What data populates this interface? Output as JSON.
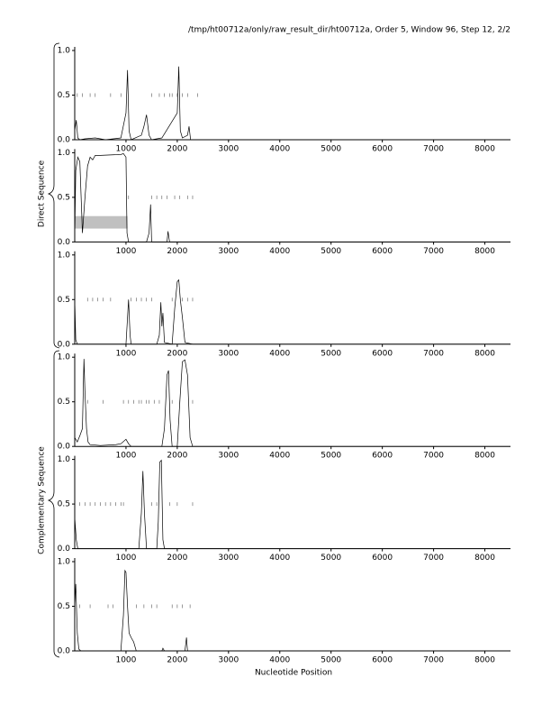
{
  "header": "/tmp/ht00712a/only/raw_result_dir/ht00712a, Order 5, Window 96, Step 12, 2/2",
  "group_labels": [
    "Direct Sequence",
    "Complementary Sequence"
  ],
  "xlabel": "Nucleotide Position",
  "chart_data": [
    {
      "type": "line",
      "color": "#000000",
      "xlim": [
        0,
        8500
      ],
      "ylim": [
        0,
        1
      ],
      "xticks": [
        1000,
        2000,
        3000,
        4000,
        5000,
        6000,
        7000,
        8000
      ],
      "yticks": [
        {
          "value": 0,
          "label": "0.0"
        },
        {
          "value": 0.5,
          "label": "0.5"
        },
        {
          "value": 1,
          "label": "1.0"
        }
      ],
      "x": [
        0,
        30,
        60,
        100,
        200,
        400,
        600,
        900,
        1000,
        1030,
        1060,
        1100,
        1300,
        1350,
        1400,
        1450,
        1500,
        1700,
        2000,
        2030,
        2060,
        2100,
        2200,
        2230,
        2260,
        2400,
        8500
      ],
      "values": [
        0.1,
        0.22,
        0.02,
        0,
        0.01,
        0.02,
        0,
        0.02,
        0.3,
        0.78,
        0.1,
        0,
        0.05,
        0.15,
        0.28,
        0.05,
        0,
        0.02,
        0.3,
        0.82,
        0.1,
        0.02,
        0.05,
        0.15,
        0,
        0,
        0
      ],
      "sites": {
        "x": [
          50,
          150,
          300,
          400,
          700,
          900,
          1500,
          1650,
          1750,
          1850,
          1900,
          2000,
          2100,
          2200,
          2400
        ],
        "y": [
          0.5,
          0.5,
          0.5,
          0.5,
          0.5,
          0.5,
          0.5,
          0.5,
          0.5,
          0.5,
          0.5,
          0.5,
          0.5,
          0.5,
          0.5
        ]
      }
    },
    {
      "type": "line",
      "color": "#000000",
      "xlim": [
        0,
        8500
      ],
      "ylim": [
        0,
        1
      ],
      "xticks": [
        1000,
        2000,
        3000,
        4000,
        5000,
        6000,
        7000,
        8000
      ],
      "yticks": [
        {
          "value": 0,
          "label": "0.0"
        },
        {
          "value": 0.5,
          "label": "0.5"
        },
        {
          "value": 1,
          "label": "1.0"
        }
      ],
      "x": [
        0,
        20,
        60,
        100,
        150,
        200,
        250,
        300,
        350,
        400,
        500,
        900,
        950,
        1000,
        1020,
        1050,
        1400,
        1450,
        1480,
        1500,
        1800,
        1820,
        1850,
        2000,
        8500
      ],
      "values": [
        0.05,
        0.8,
        0.95,
        0.9,
        0.1,
        0.5,
        0.85,
        0.95,
        0.92,
        0.97,
        0.97,
        0.98,
        0.99,
        0.95,
        0.1,
        0,
        0,
        0.1,
        0.42,
        0,
        0,
        0.12,
        0,
        0,
        0
      ],
      "highlight": {
        "x": [
          0,
          1030
        ],
        "y": [
          0.15,
          0.29
        ],
        "color": "#c0c0c0"
      },
      "sites": {
        "x": [
          1050,
          1500,
          1600,
          1700,
          1800,
          1950,
          2050,
          2200,
          2300
        ],
        "y": [
          0.5,
          0.5,
          0.5,
          0.5,
          0.5,
          0.5,
          0.5,
          0.5,
          0.5
        ]
      }
    },
    {
      "type": "line",
      "color": "#000000",
      "xlim": [
        0,
        8500
      ],
      "ylim": [
        0,
        1
      ],
      "xticks": [
        1000,
        2000,
        3000,
        4000,
        5000,
        6000,
        7000,
        8000
      ],
      "yticks": [
        {
          "value": 0,
          "label": "0.0"
        },
        {
          "value": 0.5,
          "label": "0.5"
        },
        {
          "value": 1,
          "label": "1.0"
        }
      ],
      "x": [
        0,
        20,
        50,
        100,
        1000,
        1020,
        1050,
        1080,
        1100,
        1600,
        1650,
        1680,
        1700,
        1720,
        1750,
        1900,
        1950,
        2000,
        2030,
        2060,
        2100,
        2150,
        2300,
        8500
      ],
      "values": [
        0.5,
        0.05,
        0,
        0,
        0,
        0.2,
        0.5,
        0.1,
        0,
        0,
        0.1,
        0.47,
        0.2,
        0.35,
        0.02,
        0,
        0.4,
        0.7,
        0.72,
        0.5,
        0.3,
        0.02,
        0,
        0
      ],
      "sites": {
        "x": [
          250,
          350,
          450,
          550,
          700,
          1100,
          1200,
          1300,
          1400,
          1500,
          1900,
          2100,
          2200,
          2300
        ],
        "y": [
          0.5,
          0.5,
          0.5,
          0.5,
          0.5,
          0.5,
          0.5,
          0.5,
          0.5,
          0.5,
          0.5,
          0.5,
          0.5,
          0.5
        ]
      }
    },
    {
      "type": "line",
      "color": "#000000",
      "xlim": [
        0,
        8500
      ],
      "ylim": [
        0,
        1
      ],
      "xticks": [
        1000,
        2000,
        3000,
        4000,
        5000,
        6000,
        7000,
        8000
      ],
      "yticks": [
        {
          "value": 0,
          "label": "0.0"
        },
        {
          "value": 0.5,
          "label": "0.5"
        },
        {
          "value": 1,
          "label": "1.0"
        }
      ],
      "x": [
        0,
        50,
        100,
        150,
        180,
        200,
        230,
        260,
        300,
        500,
        800,
        900,
        1000,
        1050,
        1100,
        1700,
        1750,
        1800,
        1830,
        1860,
        1900,
        2000,
        2050,
        2100,
        2150,
        2200,
        2250,
        2300,
        8500
      ],
      "values": [
        0.1,
        0.05,
        0.12,
        0.2,
        0.98,
        0.6,
        0.2,
        0.05,
        0.02,
        0.01,
        0.02,
        0.03,
        0.08,
        0.03,
        0,
        0,
        0.2,
        0.8,
        0.85,
        0.3,
        0,
        0,
        0.5,
        0.95,
        0.97,
        0.8,
        0.1,
        0,
        0
      ],
      "sites": {
        "x": [
          250,
          550,
          950,
          1050,
          1150,
          1250,
          1300,
          1400,
          1450,
          1550,
          1650,
          1900,
          2050,
          2300
        ],
        "y": [
          0.5,
          0.5,
          0.5,
          0.5,
          0.5,
          0.5,
          0.5,
          0.5,
          0.5,
          0.5,
          0.5,
          0.5,
          0.5,
          0.5
        ]
      }
    },
    {
      "type": "line",
      "color": "#000000",
      "xlim": [
        0,
        8500
      ],
      "ylim": [
        0,
        1
      ],
      "xticks": [
        1000,
        2000,
        3000,
        4000,
        5000,
        6000,
        7000,
        8000
      ],
      "yticks": [
        {
          "value": 0,
          "label": "0.0"
        },
        {
          "value": 0.5,
          "label": "0.5"
        },
        {
          "value": 1,
          "label": "1.0"
        }
      ],
      "x": [
        0,
        30,
        60,
        100,
        1250,
        1300,
        1330,
        1360,
        1400,
        1600,
        1630,
        1660,
        1690,
        1720,
        1750,
        8500
      ],
      "values": [
        0.35,
        0.1,
        0,
        0,
        0,
        0.4,
        0.87,
        0.4,
        0,
        0,
        0.3,
        0.97,
        0.99,
        0.1,
        0,
        0
      ],
      "sites": {
        "x": [
          100,
          200,
          300,
          400,
          500,
          600,
          700,
          800,
          900,
          950,
          1500,
          1600,
          1850,
          2000,
          2300
        ],
        "y": [
          0.5,
          0.5,
          0.5,
          0.5,
          0.5,
          0.5,
          0.5,
          0.5,
          0.5,
          0.5,
          0.5,
          0.5,
          0.5,
          0.5,
          0.5
        ]
      }
    },
    {
      "type": "line",
      "color": "#000000",
      "xlim": [
        0,
        8500
      ],
      "ylim": [
        0,
        1
      ],
      "xticks": [
        1000,
        2000,
        3000,
        4000,
        5000,
        6000,
        7000,
        8000
      ],
      "yticks": [
        {
          "value": 0,
          "label": "0.0"
        },
        {
          "value": 0.5,
          "label": "0.5"
        },
        {
          "value": 1,
          "label": "1.0"
        }
      ],
      "x": [
        0,
        20,
        50,
        80,
        120,
        200,
        900,
        950,
        980,
        1000,
        1030,
        1060,
        1100,
        1150,
        1200,
        1700,
        1720,
        1750,
        2150,
        2180,
        2200,
        2230,
        8500
      ],
      "values": [
        0.5,
        0.75,
        0.2,
        0.02,
        0,
        0,
        0,
        0.4,
        0.9,
        0.88,
        0.5,
        0.2,
        0.15,
        0.1,
        0,
        0,
        0.03,
        0,
        0,
        0.15,
        0,
        0,
        0
      ],
      "sites": {
        "x": [
          100,
          300,
          650,
          750,
          1200,
          1350,
          1500,
          1600,
          1900,
          2000,
          2100,
          2250
        ],
        "y": [
          0.5,
          0.5,
          0.5,
          0.5,
          0.5,
          0.5,
          0.5,
          0.5,
          0.5,
          0.5,
          0.5,
          0.5
        ]
      }
    }
  ]
}
